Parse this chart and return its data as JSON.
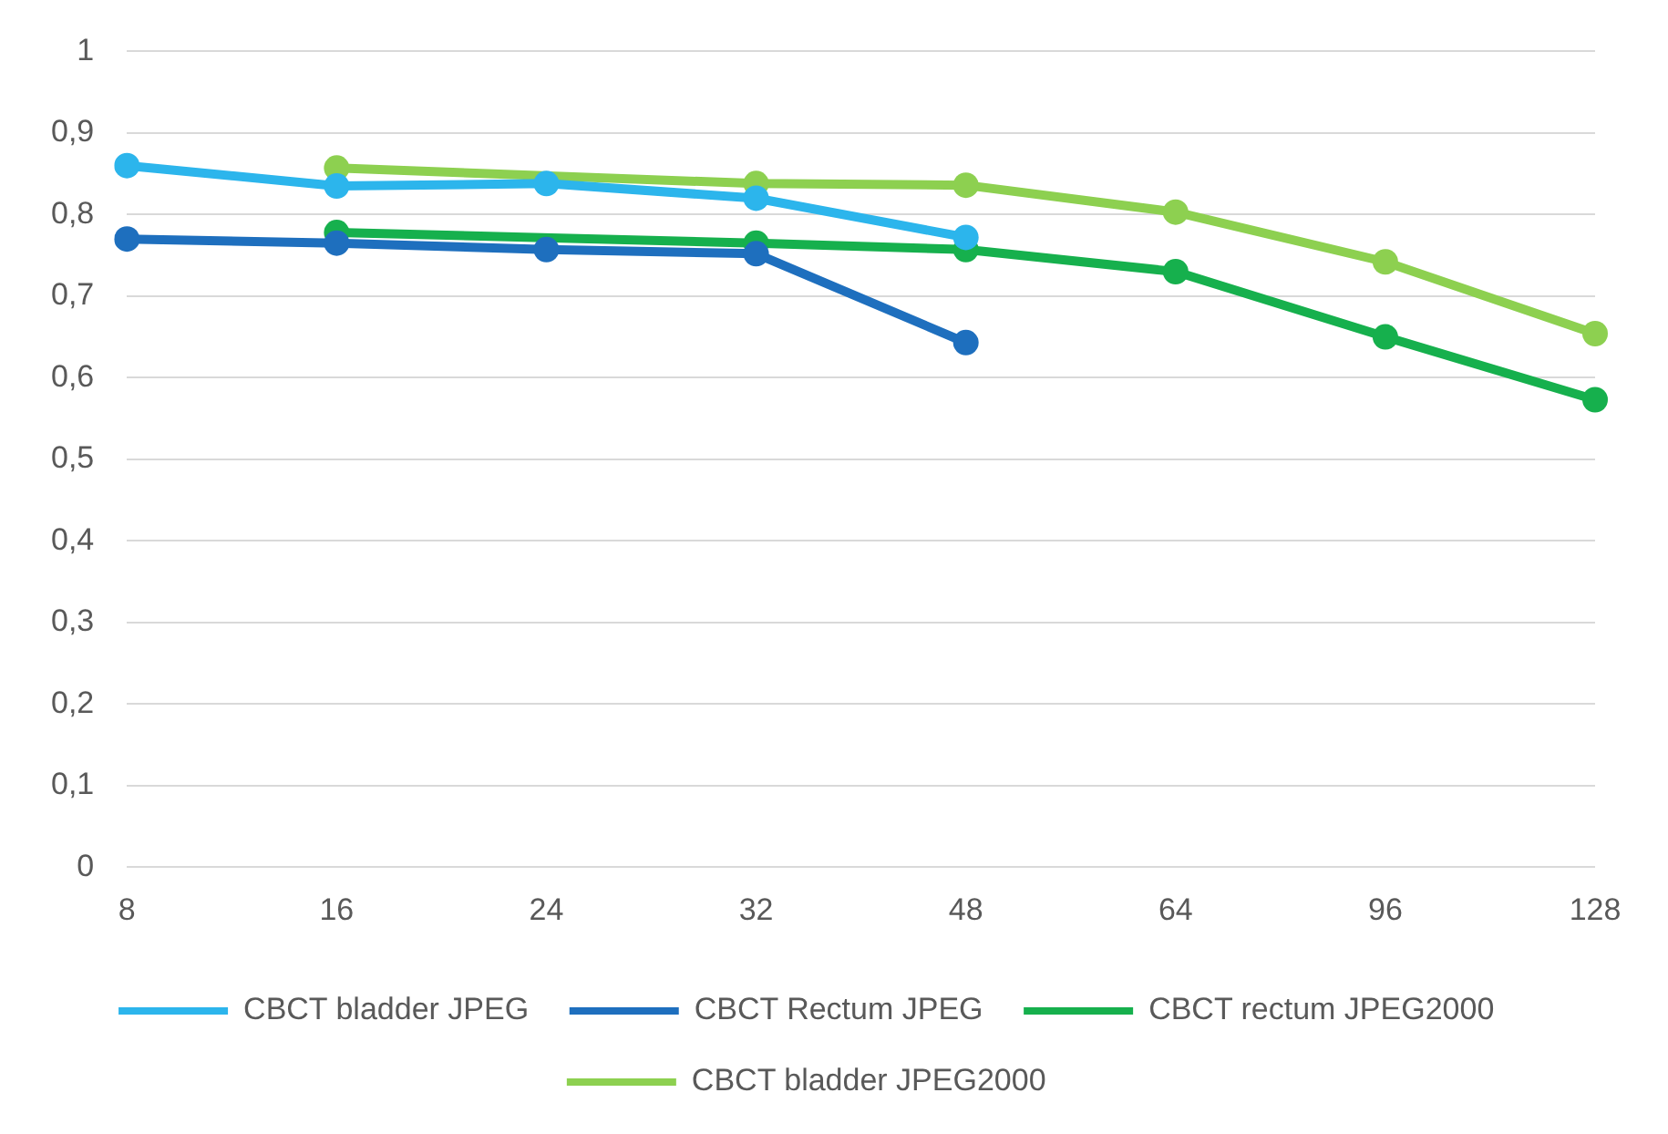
{
  "chart_data": {
    "type": "line",
    "categories": [
      "8",
      "16",
      "24",
      "32",
      "48",
      "64",
      "96",
      "128"
    ],
    "series": [
      {
        "name": "CBCT bladder JPEG",
        "color": "#2cb5ec",
        "values": [
          0.86,
          0.835,
          0.838,
          0.82,
          0.772,
          null,
          null,
          null
        ]
      },
      {
        "name": "CBCT Rectum JPEG",
        "color": "#1e6fbe",
        "values": [
          0.77,
          0.765,
          0.757,
          0.752,
          0.643,
          null,
          null,
          null
        ]
      },
      {
        "name": "CBCT rectum JPEG2000",
        "color": "#16b04d",
        "values": [
          null,
          0.778,
          null,
          0.765,
          0.757,
          0.73,
          0.65,
          0.573
        ]
      },
      {
        "name": "CBCT bladder JPEG2000",
        "color": "#8dd050",
        "values": [
          null,
          0.857,
          null,
          0.838,
          0.836,
          0.803,
          0.742,
          0.654
        ]
      }
    ],
    "ylim": [
      0,
      1
    ],
    "yticks": [
      {
        "value": 0,
        "label": "0"
      },
      {
        "value": 0.1,
        "label": "0,1"
      },
      {
        "value": 0.2,
        "label": "0,2"
      },
      {
        "value": 0.3,
        "label": "0,3"
      },
      {
        "value": 0.4,
        "label": "0,4"
      },
      {
        "value": 0.5,
        "label": "0,5"
      },
      {
        "value": 0.6,
        "label": "0,6"
      },
      {
        "value": 0.7,
        "label": "0,7"
      },
      {
        "value": 0.8,
        "label": "0,8"
      },
      {
        "value": 0.9,
        "label": "0,9"
      },
      {
        "value": 1,
        "label": "1"
      }
    ],
    "grid": "y",
    "legend": "bottom",
    "marker": "circle",
    "line_style": "solid"
  }
}
